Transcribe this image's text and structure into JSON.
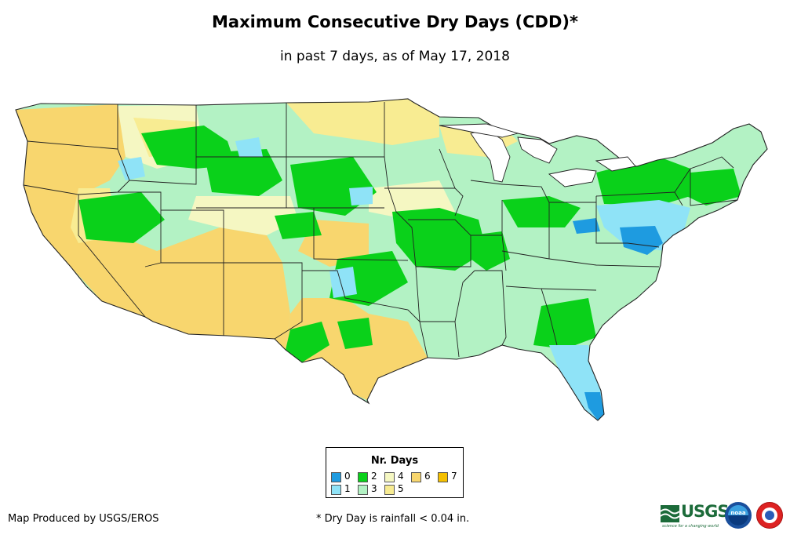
{
  "title": "Maximum Consecutive Dry Days (CDD)*",
  "subtitle": "in past 7 days, as of May 17, 2018",
  "legend": {
    "title": "Nr. Days",
    "items": [
      {
        "label": "0",
        "color": "#1e9be0"
      },
      {
        "label": "1",
        "color": "#8fe3f7"
      },
      {
        "label": "2",
        "color": "#0ad11a"
      },
      {
        "label": "3",
        "color": "#b3f2c4"
      },
      {
        "label": "4",
        "color": "#f5f7c2"
      },
      {
        "label": "5",
        "color": "#f8ec92"
      },
      {
        "label": "6",
        "color": "#f8d66e"
      },
      {
        "label": "7",
        "color": "#f5c000"
      }
    ]
  },
  "credit": "Map Produced by USGS/EROS",
  "footnote": "* Dry Day is rainfall < 0.04 in.",
  "logos": {
    "usgs": "USGS",
    "usgs_tagline": "science for a changing world",
    "noaa": "noaa"
  }
}
